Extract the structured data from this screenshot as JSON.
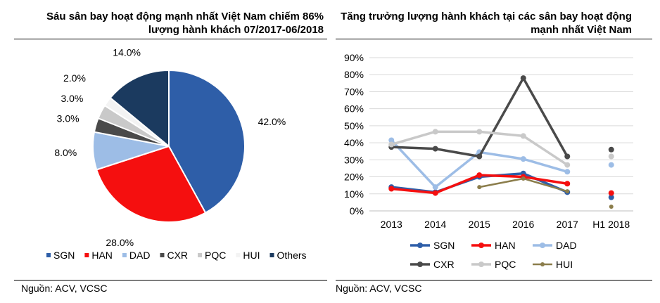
{
  "colors": {
    "SGN": "#2e5ea8",
    "HAN": "#f50f0f",
    "DAD": "#9dbde6",
    "CXR": "#4a4a4a",
    "PQC": "#c9c9c9",
    "HUI": "#f3f3f3",
    "Others": "#1b3a5f",
    "HUI_line": "#8b7d4b",
    "grid": "#d9d9d9"
  },
  "source_left": "Nguồn: ACV, VCSC",
  "source_right": "Nguồn: ACV, VCSC",
  "chart_data": [
    {
      "type": "pie",
      "title": "Sáu sân bay hoạt động mạnh nhất Việt Nam chiếm 86% lượng hành khách 07/2017-06/2018",
      "slices": [
        {
          "name": "SGN",
          "value": 42.0,
          "label": "42.0%"
        },
        {
          "name": "HAN",
          "value": 28.0,
          "label": "28.0%"
        },
        {
          "name": "DAD",
          "value": 8.0,
          "label": "8.0%"
        },
        {
          "name": "CXR",
          "value": 3.0,
          "label": "3.0%"
        },
        {
          "name": "PQC",
          "value": 3.0,
          "label": "3.0%"
        },
        {
          "name": "HUI",
          "value": 2.0,
          "label": "2.0%"
        },
        {
          "name": "Others",
          "value": 14.0,
          "label": "14.0%"
        }
      ],
      "legend": [
        "SGN",
        "HAN",
        "DAD",
        "CXR",
        "PQC",
        "HUI",
        "Others"
      ],
      "legend_position": "bottom"
    },
    {
      "type": "line",
      "title": "Tăng trưởng lượng hành khách tại các sân bay hoạt động mạnh nhất Việt Nam",
      "categories": [
        "2013",
        "2014",
        "2015",
        "2016",
        "2017",
        "H1 2018"
      ],
      "yticks": [
        "0%",
        "10%",
        "20%",
        "30%",
        "40%",
        "50%",
        "60%",
        "70%",
        "80%",
        "90%"
      ],
      "ylim": [
        0,
        90
      ],
      "grid": true,
      "series": [
        {
          "name": "SGN",
          "values": [
            14,
            11,
            20,
            22,
            11,
            8
          ]
        },
        {
          "name": "HAN",
          "values": [
            13,
            10.5,
            21,
            20,
            16,
            10.5
          ]
        },
        {
          "name": "DAD",
          "values": [
            41.5,
            14,
            34.5,
            30.5,
            23,
            27
          ]
        },
        {
          "name": "CXR",
          "values": [
            37.5,
            36.5,
            32,
            78,
            32,
            36
          ]
        },
        {
          "name": "PQC",
          "values": [
            39,
            46.5,
            46.5,
            44,
            27,
            32
          ]
        },
        {
          "name": "HUI",
          "values": [
            null,
            null,
            14,
            19,
            11.5,
            2.5
          ]
        }
      ],
      "legend": [
        "SGN",
        "HAN",
        "DAD",
        "CXR",
        "PQC",
        "HUI"
      ],
      "legend_position": "bottom"
    }
  ]
}
